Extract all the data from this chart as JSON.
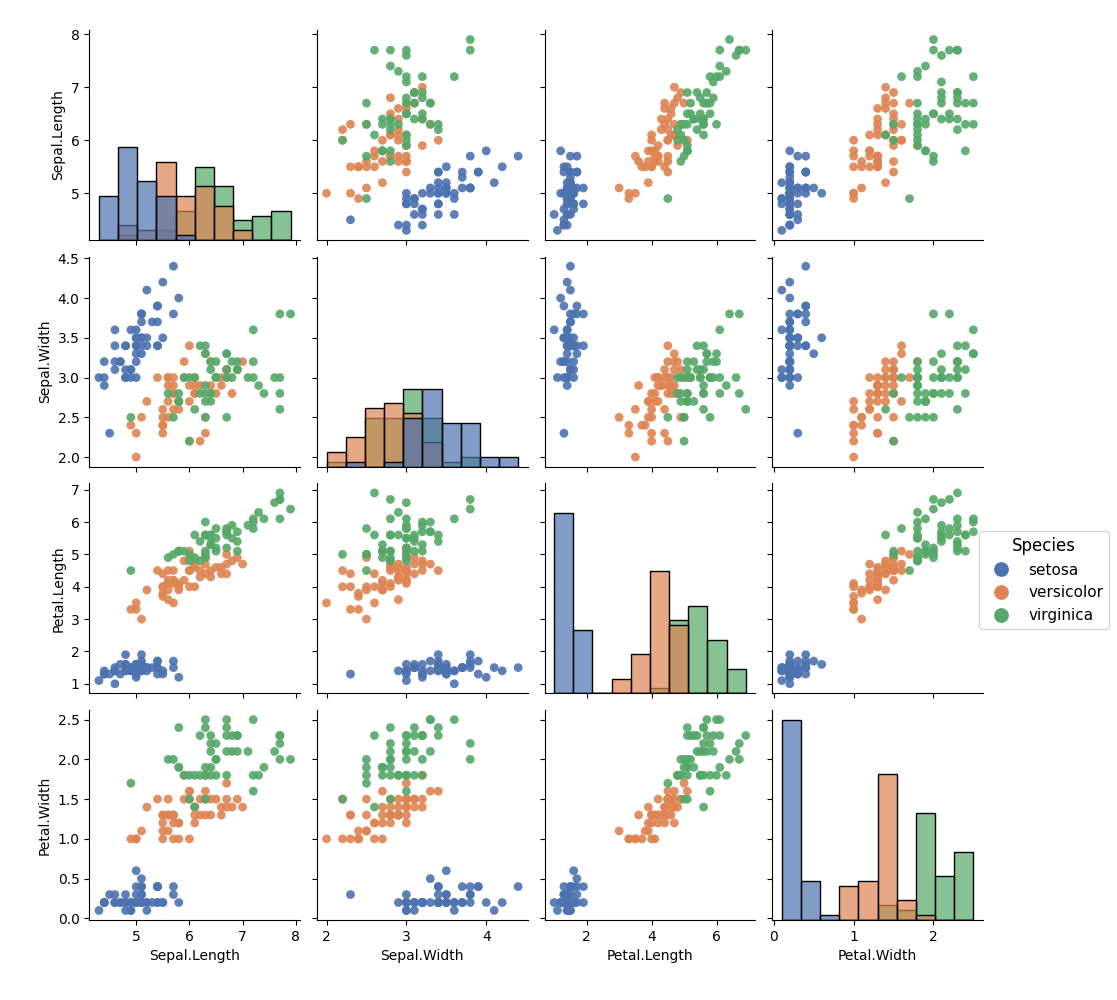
{
  "title": "",
  "variables": [
    "Sepal.Length",
    "Sepal.Width",
    "Petal.Length",
    "Petal.Width"
  ],
  "species": [
    "setosa",
    "versicolor",
    "virginica"
  ],
  "colors": {
    "setosa": "#4C72B0",
    "versicolor": "#DD8452",
    "virginica": "#55A868"
  },
  "legend_title": "Species",
  "alpha": 0.7,
  "hist_alpha": 0.7,
  "scatter_alpha": 0.9,
  "hist_bins": 10,
  "point_size": 40
}
